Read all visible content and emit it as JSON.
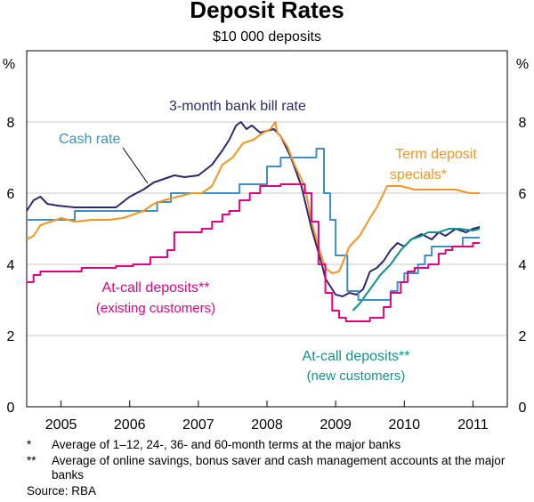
{
  "chart_data": {
    "type": "line",
    "title": "Deposit Rates",
    "subtitle": "$10 000 deposits",
    "ylabel_left": "%",
    "ylabel_right": "%",
    "ylim": [
      0,
      10
    ],
    "yticks": [
      0,
      2,
      4,
      6,
      8
    ],
    "xlim": [
      2004.5,
      2011.5
    ],
    "xtick_labels": [
      "2005",
      "2006",
      "2007",
      "2008",
      "2009",
      "2010",
      "2011"
    ],
    "grid": "horizontal",
    "series": [
      {
        "name": "3-month bank bill rate",
        "label": "3-month bank bill rate",
        "color": "#2b2a6e",
        "step": false,
        "x": [
          2004.5,
          2004.6,
          2004.7,
          2004.8,
          2004.95,
          2005.2,
          2005.5,
          2005.8,
          2006.0,
          2006.2,
          2006.35,
          2006.5,
          2006.65,
          2006.8,
          2007.0,
          2007.2,
          2007.35,
          2007.45,
          2007.55,
          2007.62,
          2007.7,
          2007.78,
          2007.9,
          2008.0,
          2008.1,
          2008.2,
          2008.35,
          2008.5,
          2008.65,
          2008.8,
          2008.85,
          2008.95,
          2009.0,
          2009.1,
          2009.2,
          2009.3,
          2009.4,
          2009.5,
          2009.6,
          2009.7,
          2009.8,
          2009.9,
          2010.0,
          2010.1,
          2010.25,
          2010.4,
          2010.5,
          2010.6,
          2010.75,
          2010.9,
          2011.0,
          2011.1
        ],
        "values": [
          5.5,
          5.8,
          5.9,
          5.7,
          5.65,
          5.6,
          5.6,
          5.6,
          5.9,
          6.1,
          6.3,
          6.4,
          6.5,
          6.45,
          6.5,
          6.8,
          7.2,
          7.5,
          7.9,
          8.0,
          7.8,
          7.9,
          7.7,
          7.75,
          7.8,
          7.6,
          7.0,
          6.2,
          5.0,
          4.0,
          3.6,
          3.3,
          3.15,
          3.1,
          3.2,
          3.15,
          3.3,
          3.8,
          3.9,
          4.1,
          4.4,
          4.6,
          4.5,
          4.7,
          4.85,
          4.7,
          4.9,
          4.8,
          5.0,
          4.9,
          5.0,
          5.05
        ]
      },
      {
        "name": "Cash rate",
        "label": "Cash rate",
        "color": "#3c8fcb",
        "step": true,
        "x": [
          2004.5,
          2005.2,
          2006.4,
          2006.6,
          2007.6,
          2008.0,
          2008.2,
          2008.72,
          2008.83,
          2008.92,
          2009.0,
          2009.17,
          2009.33,
          2009.8,
          2009.9,
          2010.0,
          2010.2,
          2010.3,
          2010.4,
          2010.85,
          2011.1
        ],
        "values": [
          5.25,
          5.5,
          5.75,
          6.0,
          6.25,
          6.75,
          7.0,
          7.25,
          6.0,
          5.25,
          4.25,
          3.25,
          3.0,
          3.25,
          3.5,
          3.75,
          4.0,
          4.25,
          4.5,
          4.75,
          4.75
        ]
      },
      {
        "name": "Term deposit specials*",
        "label": [
          "Term deposit",
          "specials*"
        ],
        "color": "#f7941d",
        "step": false,
        "x": [
          2004.5,
          2004.6,
          2004.7,
          2004.85,
          2005.0,
          2005.2,
          2005.45,
          2005.7,
          2005.9,
          2006.05,
          2006.2,
          2006.35,
          2006.5,
          2006.7,
          2006.9,
          2007.05,
          2007.2,
          2007.35,
          2007.5,
          2007.65,
          2007.8,
          2007.95,
          2008.05,
          2008.12,
          2008.15,
          2008.2,
          2008.3,
          2008.4,
          2008.55,
          2008.65,
          2008.75,
          2008.85,
          2008.95,
          2009.05,
          2009.2,
          2009.35,
          2009.5,
          2009.6,
          2009.75,
          2009.95,
          2010.15,
          2010.35,
          2010.55,
          2010.75,
          2010.95,
          2011.1
        ],
        "values": [
          4.7,
          4.8,
          5.1,
          5.2,
          5.3,
          5.2,
          5.25,
          5.25,
          5.3,
          5.4,
          5.5,
          5.7,
          5.8,
          5.9,
          6.0,
          6.0,
          6.2,
          6.8,
          7.0,
          7.4,
          7.5,
          7.7,
          7.8,
          8.0,
          7.7,
          7.6,
          7.3,
          6.8,
          6.2,
          5.2,
          4.5,
          3.9,
          3.75,
          3.8,
          4.5,
          4.8,
          5.3,
          5.6,
          6.2,
          6.2,
          6.1,
          6.1,
          6.1,
          6.1,
          6.0,
          6.0
        ]
      },
      {
        "name": "At-call deposits** (existing customers)",
        "label": [
          "At-call deposits**",
          "(existing customers)"
        ],
        "color": "#e6007e",
        "step": true,
        "x": [
          2004.5,
          2004.6,
          2004.7,
          2005.3,
          2005.8,
          2006.05,
          2006.3,
          2006.55,
          2006.65,
          2007.05,
          2007.2,
          2007.35,
          2007.45,
          2007.6,
          2007.75,
          2007.9,
          2008.2,
          2008.55,
          2008.65,
          2008.75,
          2008.85,
          2008.95,
          2009.05,
          2009.15,
          2009.5,
          2009.7,
          2009.8,
          2009.95,
          2010.05,
          2010.15,
          2010.35,
          2010.5,
          2010.6,
          2010.7,
          2011.0,
          2011.1
        ],
        "values": [
          3.5,
          3.7,
          3.8,
          3.9,
          3.95,
          4.0,
          4.2,
          4.4,
          4.9,
          5.0,
          5.2,
          5.4,
          5.5,
          5.8,
          6.0,
          6.2,
          6.25,
          6.0,
          5.2,
          4.0,
          3.2,
          2.7,
          2.5,
          2.4,
          2.5,
          2.8,
          3.2,
          3.5,
          3.8,
          3.9,
          4.0,
          4.3,
          4.4,
          4.5,
          4.6,
          4.6
        ]
      },
      {
        "name": "At-call deposits** (new customers)",
        "label": [
          "At-call deposits**",
          "(new customers)"
        ],
        "color": "#14918e",
        "step": false,
        "x": [
          2009.25,
          2009.35,
          2009.5,
          2009.65,
          2009.8,
          2009.95,
          2010.1,
          2010.25,
          2010.35,
          2010.5,
          2010.65,
          2010.8,
          2011.0,
          2011.1
        ],
        "values": [
          2.7,
          2.9,
          3.3,
          3.7,
          4.0,
          4.4,
          4.7,
          4.8,
          4.9,
          4.9,
          5.0,
          5.0,
          4.95,
          5.0
        ]
      }
    ]
  },
  "footnotes": [
    {
      "mark": "*",
      "text": "Average of 1–12, 24-, 36- and 60-month terms at the major banks"
    },
    {
      "mark": "**",
      "text": "Average of online savings, bonus saver and cash management accounts at the major banks"
    }
  ],
  "source": "Source: RBA"
}
